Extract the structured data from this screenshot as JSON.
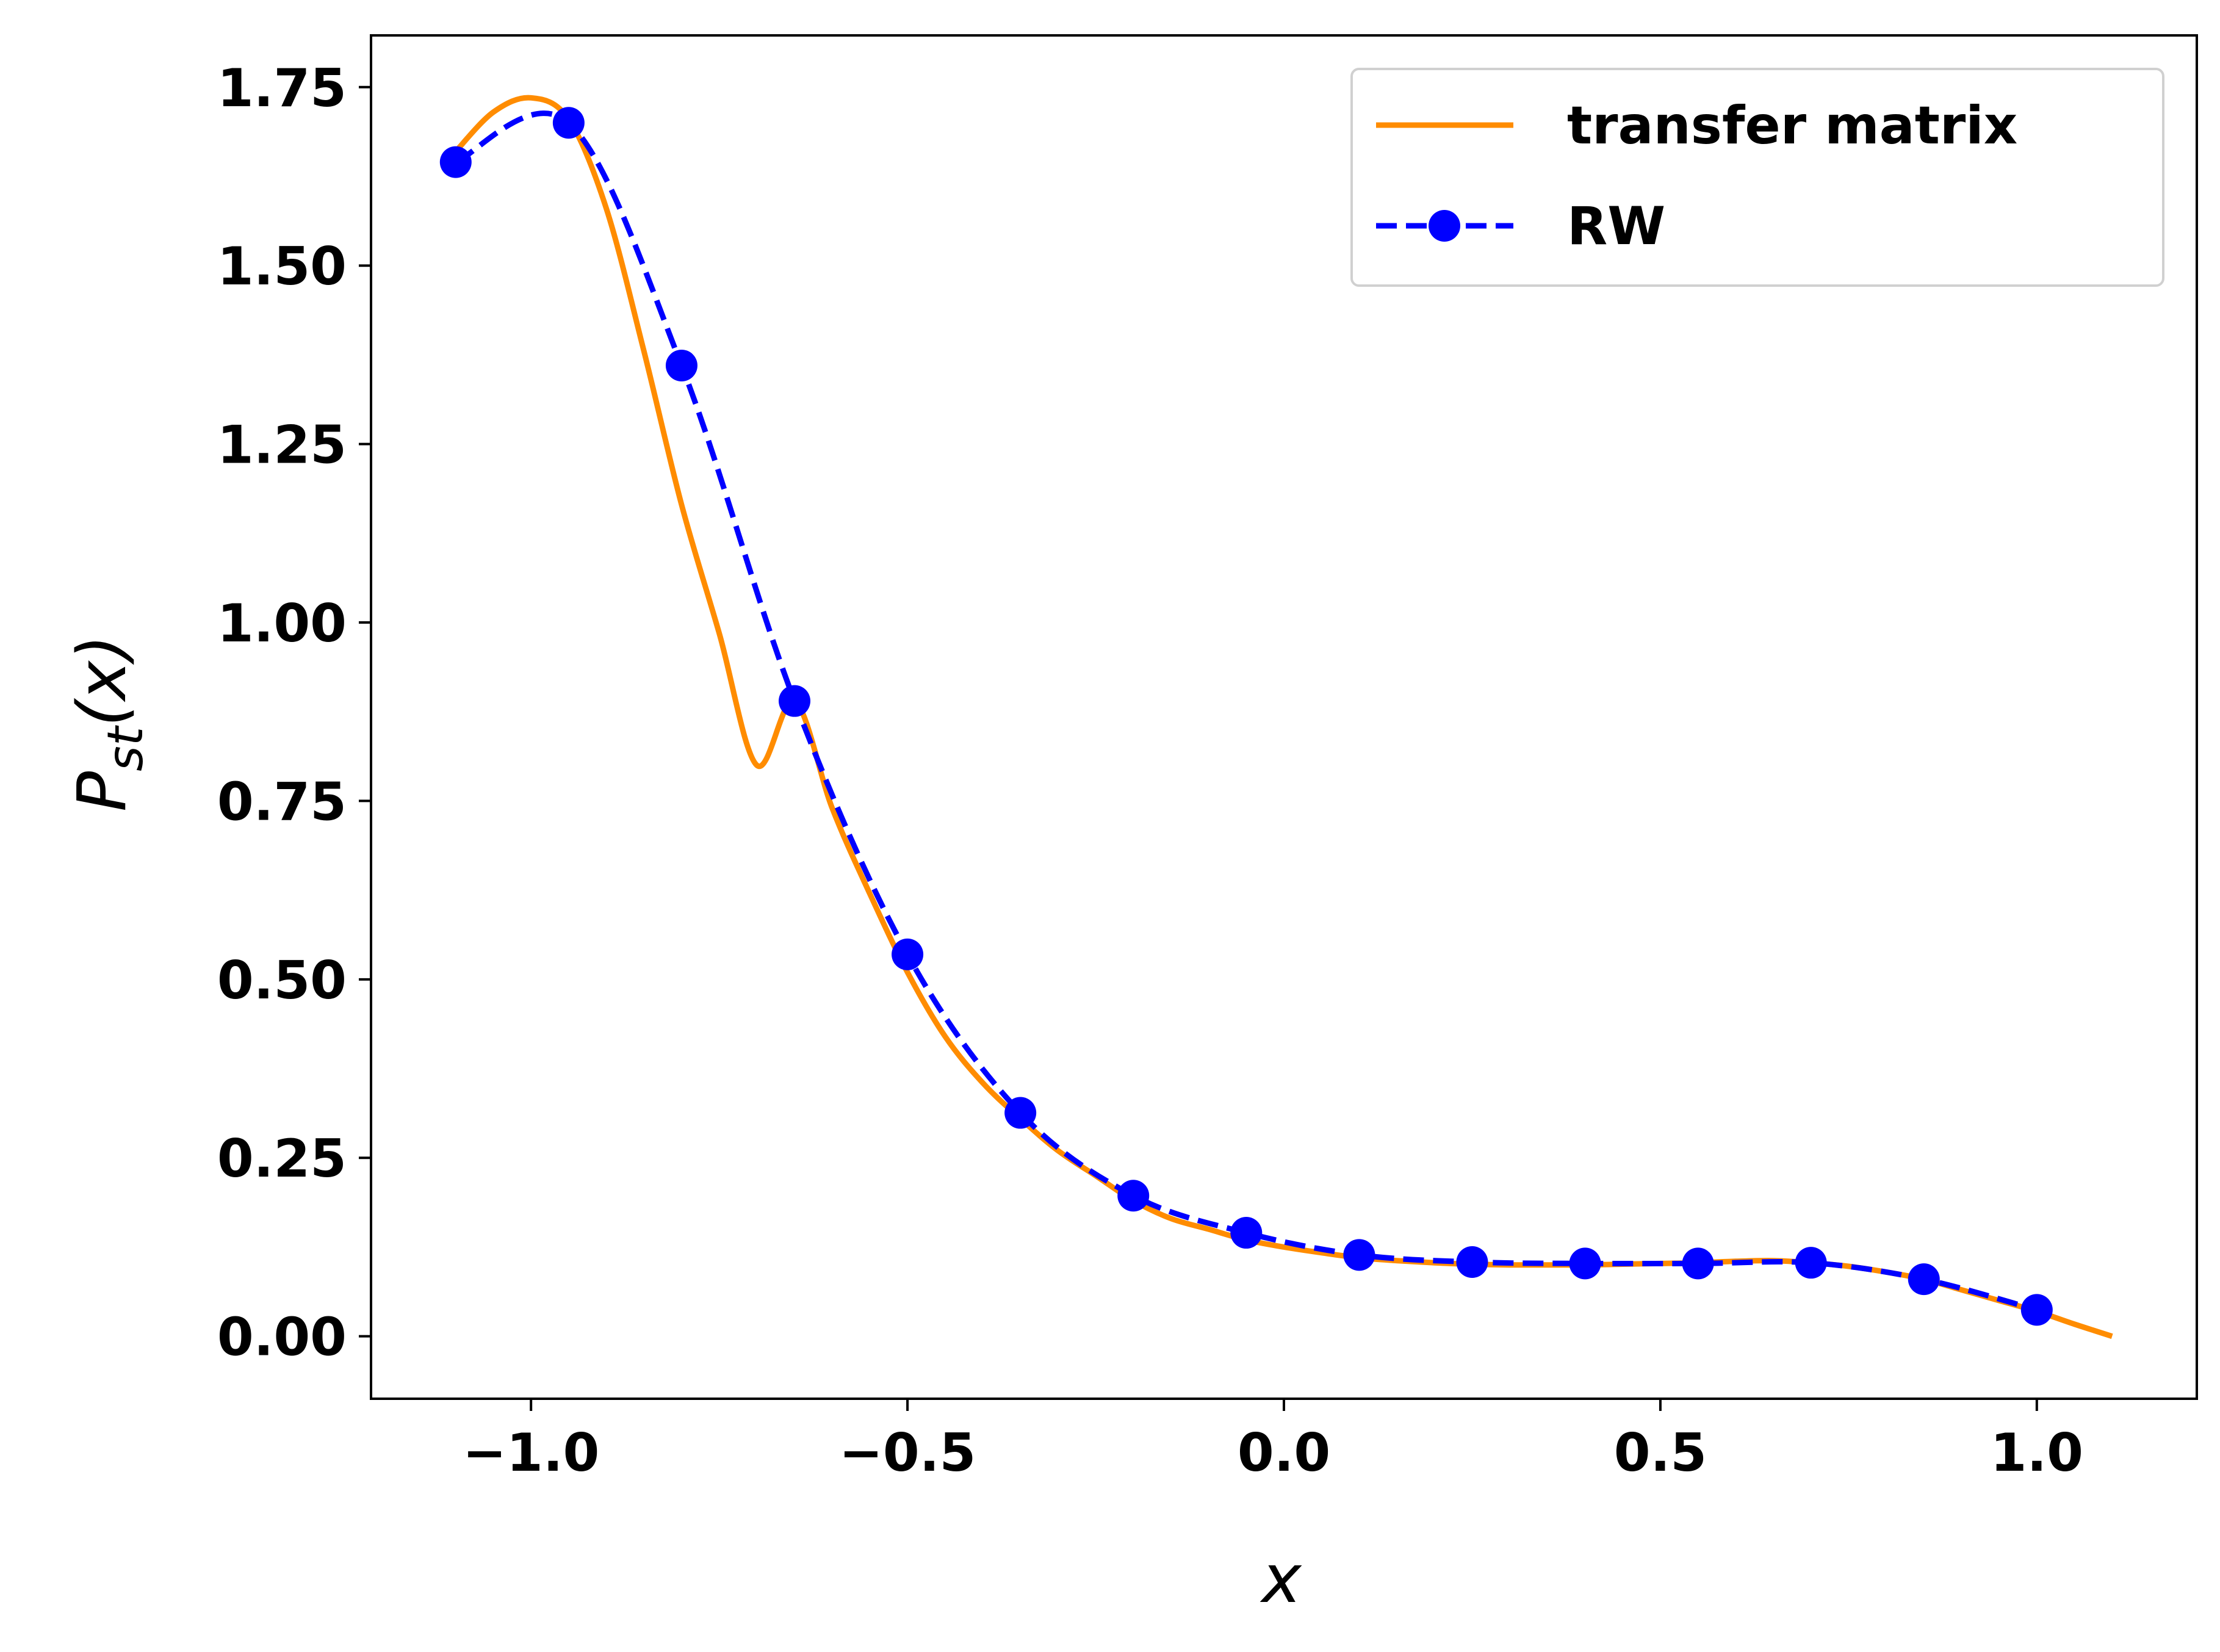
{
  "chart_data": {
    "type": "line",
    "title": "",
    "xlabel": "x",
    "ylabel": "P_st(x)",
    "xlim": [
      -1.2125,
      1.2125
    ],
    "ylim": [
      -0.0875,
      1.8225
    ],
    "xticks": [
      -1.0,
      -0.5,
      0.0,
      0.5,
      1.0
    ],
    "xtick_labels": [
      "−1.0",
      "−0.5",
      "0.0",
      "0.5",
      "1.0"
    ],
    "yticks": [
      0.0,
      0.25,
      0.5,
      0.75,
      1.0,
      1.25,
      1.5,
      1.75
    ],
    "ytick_labels": [
      "0.00",
      "0.25",
      "0.50",
      "0.75",
      "1.00",
      "1.25",
      "1.50",
      "1.75"
    ],
    "grid": false,
    "legend_position": "top-right",
    "series": [
      {
        "name": "transfer matrix",
        "color": "#ff8c00",
        "style": "solid",
        "x": [
          -1.1,
          -1.05,
          -1.0,
          -0.95,
          -0.9,
          -0.85,
          -0.8,
          -0.75,
          -0.7,
          -0.65,
          -0.6,
          -0.55,
          -0.5,
          -0.45,
          -0.4,
          -0.35,
          -0.3,
          -0.25,
          -0.2,
          -0.15,
          -0.1,
          -0.05,
          0.0,
          0.05,
          0.1,
          0.15,
          0.2,
          0.25,
          0.3,
          0.35,
          0.4,
          0.45,
          0.5,
          0.55,
          0.6,
          0.65,
          0.7,
          0.75,
          0.8,
          0.85,
          0.9,
          0.95,
          1.0,
          1.05,
          1.1
        ],
        "y": [
          1.66,
          1.715,
          1.735,
          1.705,
          1.58,
          1.38,
          1.165,
          0.985,
          0.8,
          0.89,
          0.74,
          0.62,
          0.51,
          0.42,
          0.355,
          0.305,
          0.26,
          0.225,
          0.19,
          0.165,
          0.15,
          0.135,
          0.125,
          0.117,
          0.11,
          0.106,
          0.103,
          0.101,
          0.1,
          0.1,
          0.1,
          0.101,
          0.102,
          0.103,
          0.105,
          0.106,
          0.103,
          0.098,
          0.09,
          0.08,
          0.065,
          0.05,
          0.035,
          0.017,
          0.0
        ]
      },
      {
        "name": "RW",
        "color": "#0000ff",
        "style": "dashed",
        "marker": "circle",
        "x": [
          -1.1,
          -0.95,
          -0.8,
          -0.65,
          -0.5,
          -0.35,
          -0.2,
          -0.05,
          0.1,
          0.25,
          0.4,
          0.55,
          0.7,
          0.85,
          1.0
        ],
        "y": [
          1.645,
          1.7,
          1.36,
          0.89,
          0.535,
          0.313,
          0.197,
          0.145,
          0.114,
          0.104,
          0.102,
          0.102,
          0.103,
          0.08,
          0.037
        ]
      }
    ]
  }
}
